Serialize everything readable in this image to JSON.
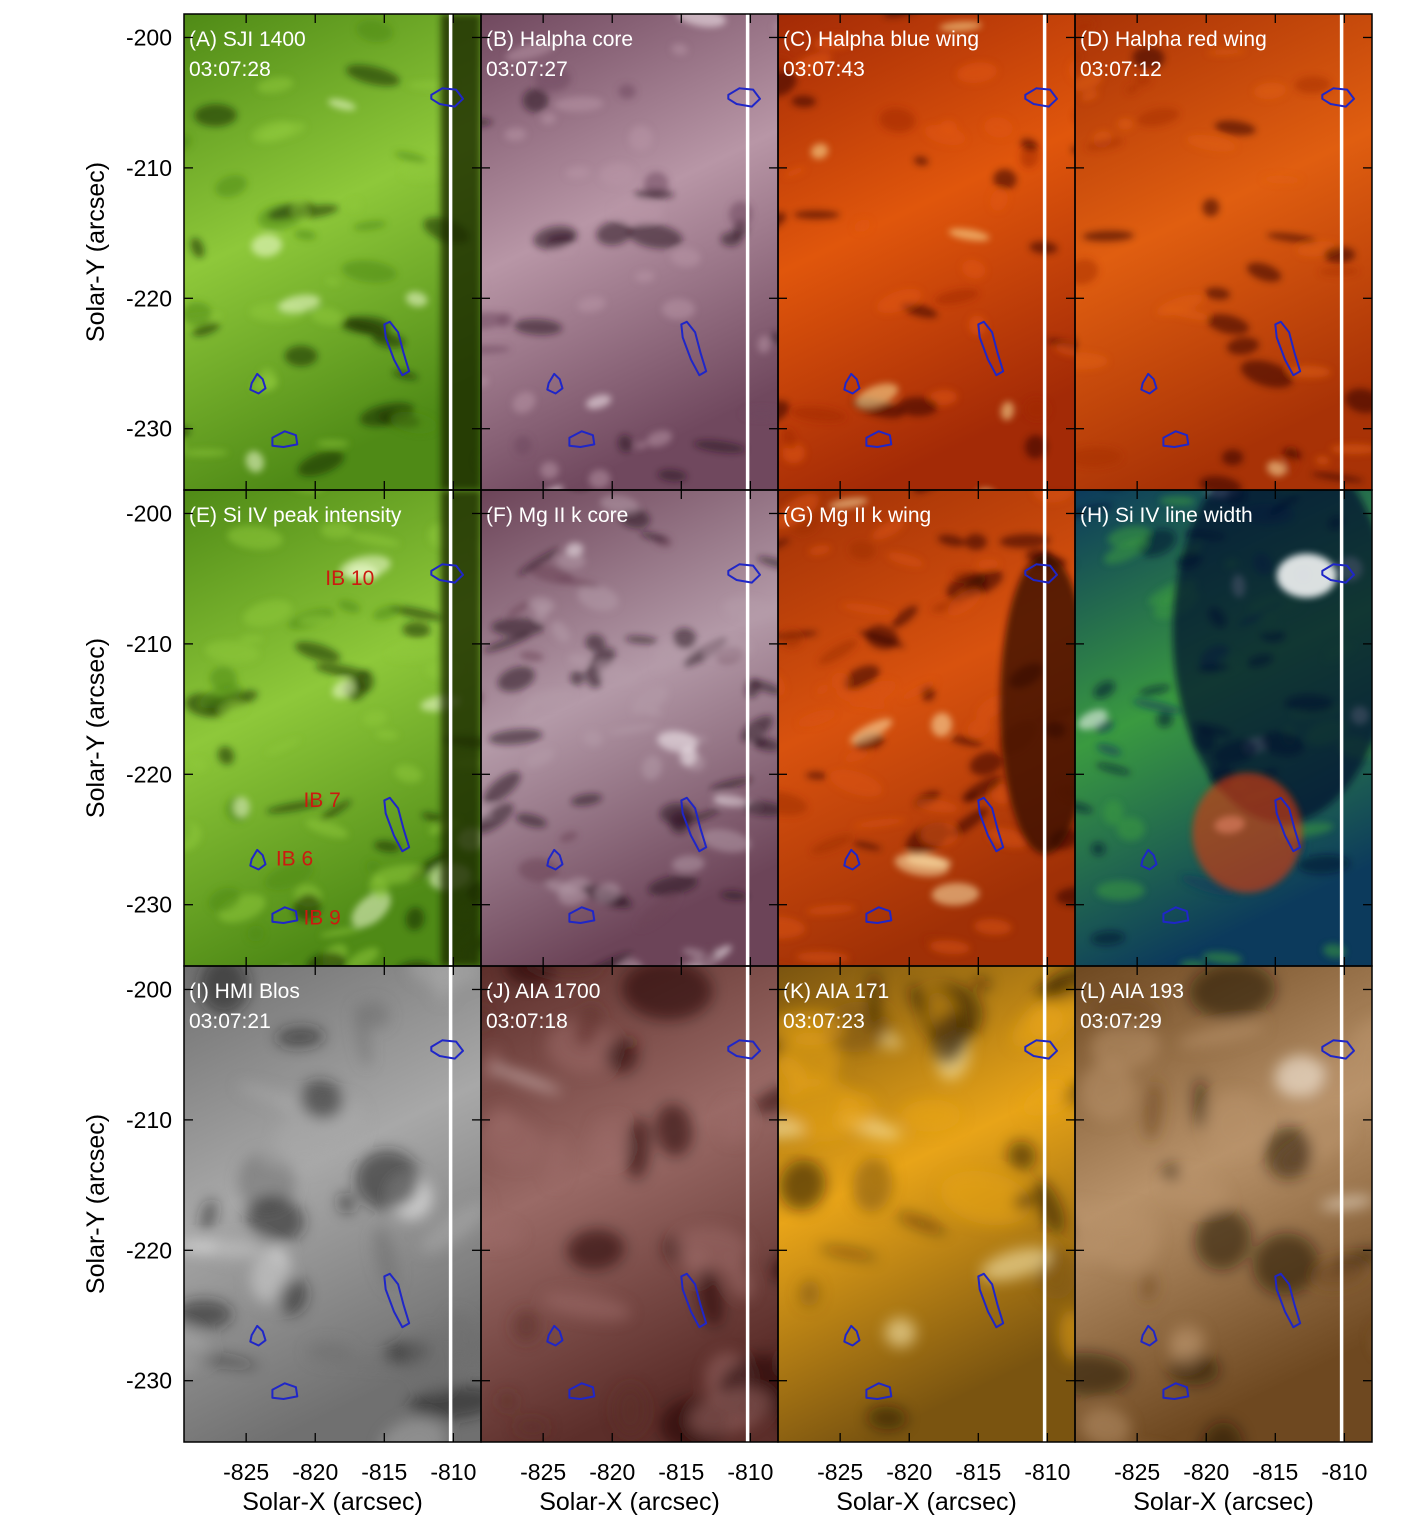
{
  "figure": {
    "x_axis_label": "Solar-X (arcsec)",
    "y_axis_label": "Solar-Y (arcsec)",
    "x_ticks": [
      "-825",
      "-820",
      "-815",
      "-810"
    ],
    "y_ticks": [
      "-200",
      "-210",
      "-220",
      "-230"
    ],
    "x_tick_values": [
      -825,
      -820,
      -815,
      -810
    ],
    "y_tick_values": [
      -200,
      -210,
      -220,
      -230
    ],
    "x_range": [
      -829.5,
      -808
    ],
    "y_range": [
      -198.2,
      -234.7
    ],
    "slit_x": -810.2,
    "contour_color": "#1f26c8",
    "slit_color": "#ffffff",
    "label_color": "#cc1a10"
  },
  "panels": [
    {
      "title": "(A) SJI 1400",
      "time": "03:07:28",
      "colors": [
        "#1a2a04",
        "#4f8a16",
        "#8ec83a",
        "#f4ffd8"
      ]
    },
    {
      "title": "(B) Halpha core",
      "time": "03:07:27",
      "colors": [
        "#2a1422",
        "#70485e",
        "#b896a6",
        "#fbf0f4"
      ]
    },
    {
      "title": "(C) Halpha blue wing",
      "time": "03:07:43",
      "colors": [
        "#300800",
        "#a32a06",
        "#e0560c",
        "#ffeaa0"
      ]
    },
    {
      "title": "(D) Halpha red wing",
      "time": "03:07:12",
      "colors": [
        "#300800",
        "#a83206",
        "#e05e10",
        "#ffe8a8"
      ]
    },
    {
      "title": "(E) Si IV peak intensity",
      "time": "",
      "colors": [
        "#1a2a04",
        "#4f8a16",
        "#8ec83a",
        "#f4ffd8"
      ]
    },
    {
      "title": "(F) Mg II k core",
      "time": "",
      "colors": [
        "#2a1422",
        "#6c4458",
        "#b49aa8",
        "#f6eef2"
      ]
    },
    {
      "title": "(G) Mg II k wing",
      "time": "",
      "colors": [
        "#300800",
        "#a03006",
        "#d8520e",
        "#ffeab0"
      ]
    },
    {
      "title": "(H) Si IV line width",
      "time": "",
      "colors": [
        "#03102e",
        "#0c3a5c",
        "#3a9a40",
        "#ffffff"
      ]
    },
    {
      "title": "(I) HMI Blos",
      "time": "03:07:21",
      "colors": [
        "#202020",
        "#707070",
        "#a8a8a8",
        "#f4f4f4"
      ]
    },
    {
      "title": "(J) AIA 1700",
      "time": "03:07:18",
      "colors": [
        "#200a08",
        "#5c2e2a",
        "#9a6a66",
        "#fff0f0"
      ]
    },
    {
      "title": "(K) AIA 171",
      "time": "03:07:23",
      "colors": [
        "#201404",
        "#7a5410",
        "#e8a418",
        "#fff3c0"
      ]
    },
    {
      "title": "(L) AIA 193",
      "time": "03:07:29",
      "colors": [
        "#201004",
        "#6e4820",
        "#b8926a",
        "#fff8ec"
      ]
    }
  ],
  "annotations": [
    {
      "panel": 4,
      "text": "IB 10",
      "x": -817.5,
      "y": -205.5
    },
    {
      "panel": 4,
      "text": "IB 7",
      "x": -819.5,
      "y": -222.5
    },
    {
      "panel": 4,
      "text": "IB 6",
      "x": -821.5,
      "y": -227.0
    },
    {
      "panel": 4,
      "text": "IB 9",
      "x": -819.5,
      "y": -231.5
    }
  ],
  "contours": [
    {
      "name": "ib10",
      "points": [
        [
          -811.6,
          -204.4
        ],
        [
          -810.8,
          -203.9
        ],
        [
          -809.8,
          -204.0
        ],
        [
          -809.3,
          -204.7
        ],
        [
          -809.9,
          -205.3
        ],
        [
          -811.0,
          -205.1
        ],
        [
          -811.6,
          -204.7
        ]
      ]
    },
    {
      "name": "ib7",
      "points": [
        [
          -814.6,
          -221.8
        ],
        [
          -814.0,
          -222.6
        ],
        [
          -813.6,
          -224.2
        ],
        [
          -813.2,
          -225.6
        ],
        [
          -813.7,
          -225.9
        ],
        [
          -814.3,
          -224.7
        ],
        [
          -814.9,
          -223.0
        ],
        [
          -815.0,
          -222.0
        ]
      ]
    },
    {
      "name": "ib6",
      "points": [
        [
          -824.6,
          -226.5
        ],
        [
          -824.2,
          -225.8
        ],
        [
          -823.8,
          -226.2
        ],
        [
          -823.6,
          -226.9
        ],
        [
          -824.1,
          -227.3
        ],
        [
          -824.7,
          -227.0
        ]
      ]
    },
    {
      "name": "ib9",
      "points": [
        [
          -823.1,
          -230.7
        ],
        [
          -822.2,
          -230.2
        ],
        [
          -821.4,
          -230.5
        ],
        [
          -821.3,
          -231.2
        ],
        [
          -822.3,
          -231.4
        ],
        [
          -823.1,
          -231.3
        ]
      ]
    }
  ]
}
